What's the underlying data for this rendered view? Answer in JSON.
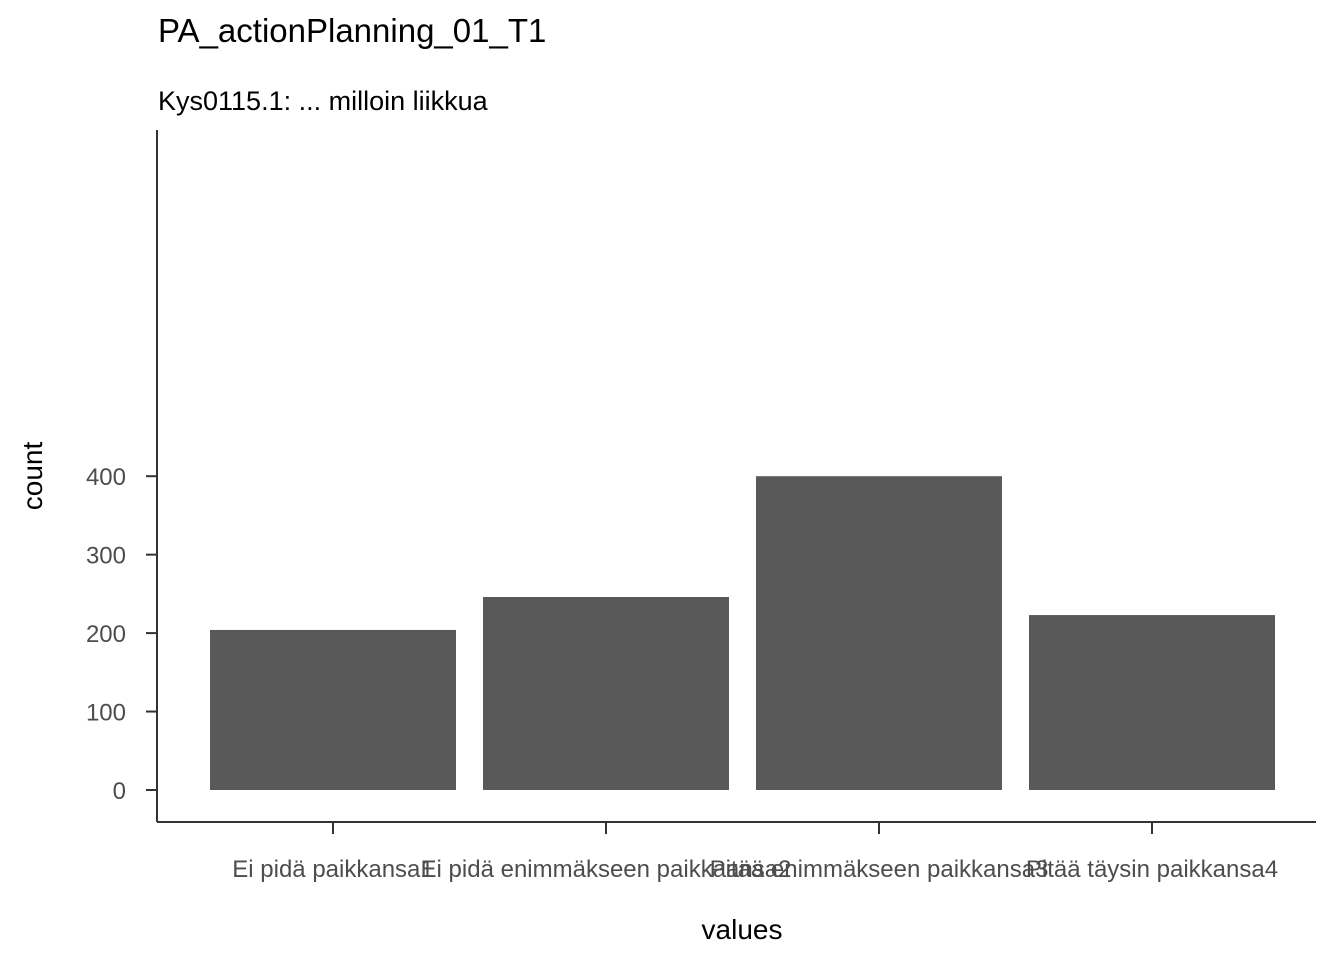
{
  "chart_data": {
    "type": "bar",
    "title": "PA_actionPlanning_01_T1",
    "subtitle": "Kys0115.1: ... milloin liikkua",
    "xlabel": "values",
    "ylabel": "count",
    "categories": [
      "Ei pidä paikkansa1",
      "Ei pidä enimmäkseen paikkaansa2",
      "Pitää enimmäkseen paikkansa3",
      "Pitää täysin paikkansa4"
    ],
    "values": [
      204,
      246,
      400,
      223
    ],
    "ylim": [
      0,
      420
    ],
    "yticks": [
      0,
      100,
      200,
      300,
      400
    ],
    "bar_color": "#595959",
    "grid": false,
    "legend": "none"
  }
}
